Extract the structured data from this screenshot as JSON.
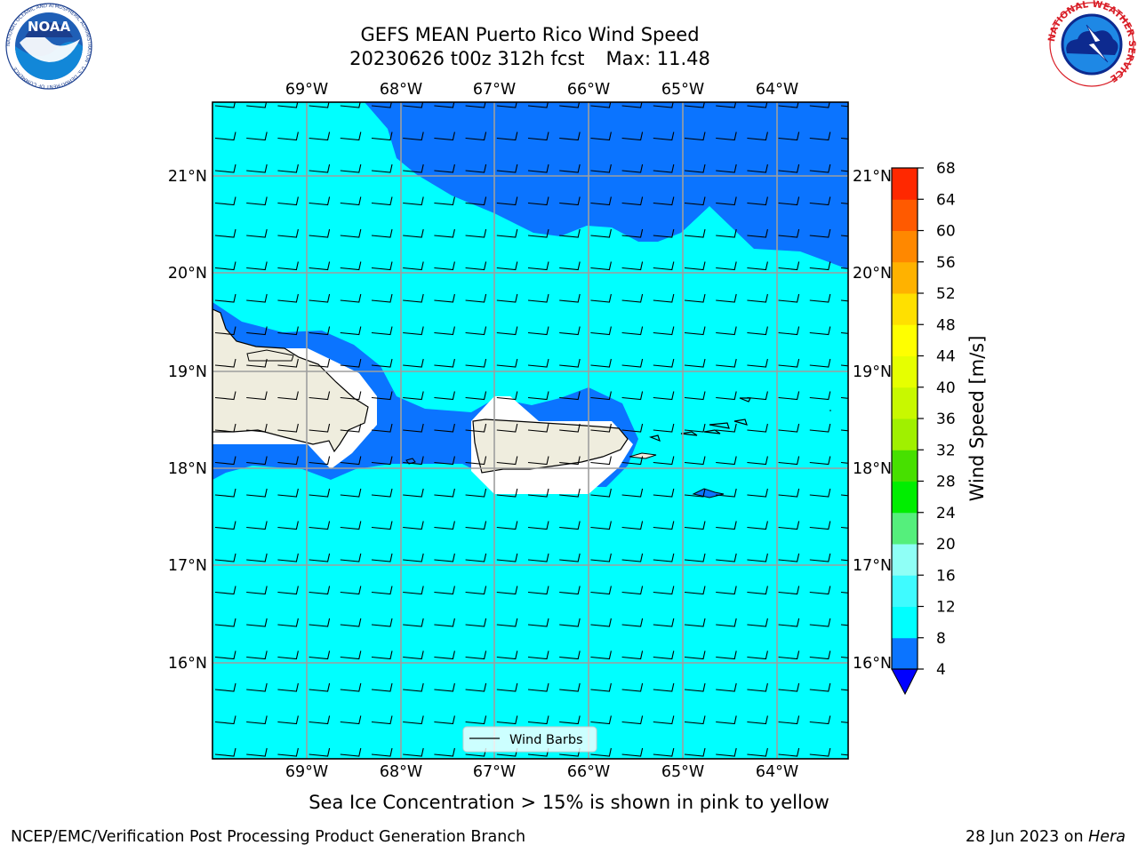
{
  "title": {
    "line1": "GEFS MEAN Puerto Rico Wind Speed",
    "run": "20230626 t00z 312h fcst",
    "max": "Max: 11.48"
  },
  "map": {
    "projection": "PlateCarree",
    "lon_labels": [
      "69°W",
      "68°W",
      "67°W",
      "66°W",
      "65°W",
      "64°W"
    ],
    "lat_labels": [
      "21°N",
      "20°N",
      "19°N",
      "18°N",
      "17°N",
      "16°N"
    ],
    "lon_range": [
      -70.0,
      -63.25
    ],
    "lat_range": [
      15.0,
      21.75
    ],
    "land_color": "#efedde",
    "ocean_colors": {
      "4-8": "#0b74ff",
      "8-12": "#00ffff"
    },
    "grid": true,
    "legend": {
      "label": "Wind Barbs",
      "placement": "bottom-center"
    },
    "barbs": {
      "direction": "easterly",
      "speed_band": "mostly 8-12 m/s"
    }
  },
  "colorbar": {
    "label": "Wind Speed [m/s]",
    "ticks": [
      "4",
      "8",
      "12",
      "16",
      "20",
      "24",
      "28",
      "32",
      "36",
      "40",
      "44",
      "48",
      "52",
      "56",
      "60",
      "64",
      "68"
    ],
    "colors": [
      "#0b74ff",
      "#00ffff",
      "#3ffbff",
      "#8ffff6",
      "#55ef7c",
      "#00ee00",
      "#47e000",
      "#a0f000",
      "#c8f800",
      "#e6ff00",
      "#ffff00",
      "#ffe000",
      "#ffb200",
      "#ff8800",
      "#ff5a00",
      "#ff2800",
      "#ff0000"
    ],
    "under_color": "#0000ff"
  },
  "subtitle": "Sea Ice Concentration > 15% is shown in pink to yellow",
  "footer": {
    "left": "NCEP/EMC/Verification Post Processing Product Generation Branch",
    "right_prefix": "28 Jun 2023 on ",
    "right_italic": "Hera"
  },
  "logos": {
    "left": {
      "text": "NOAA",
      "ring_text": "NATIONAL OCEANIC AND ATMOSPHERIC ADMINISTRATION · U.S. DEPARTMENT OF COMMERCE"
    },
    "right": {
      "ring_text": "NATIONAL WEATHER SERVICE"
    }
  }
}
